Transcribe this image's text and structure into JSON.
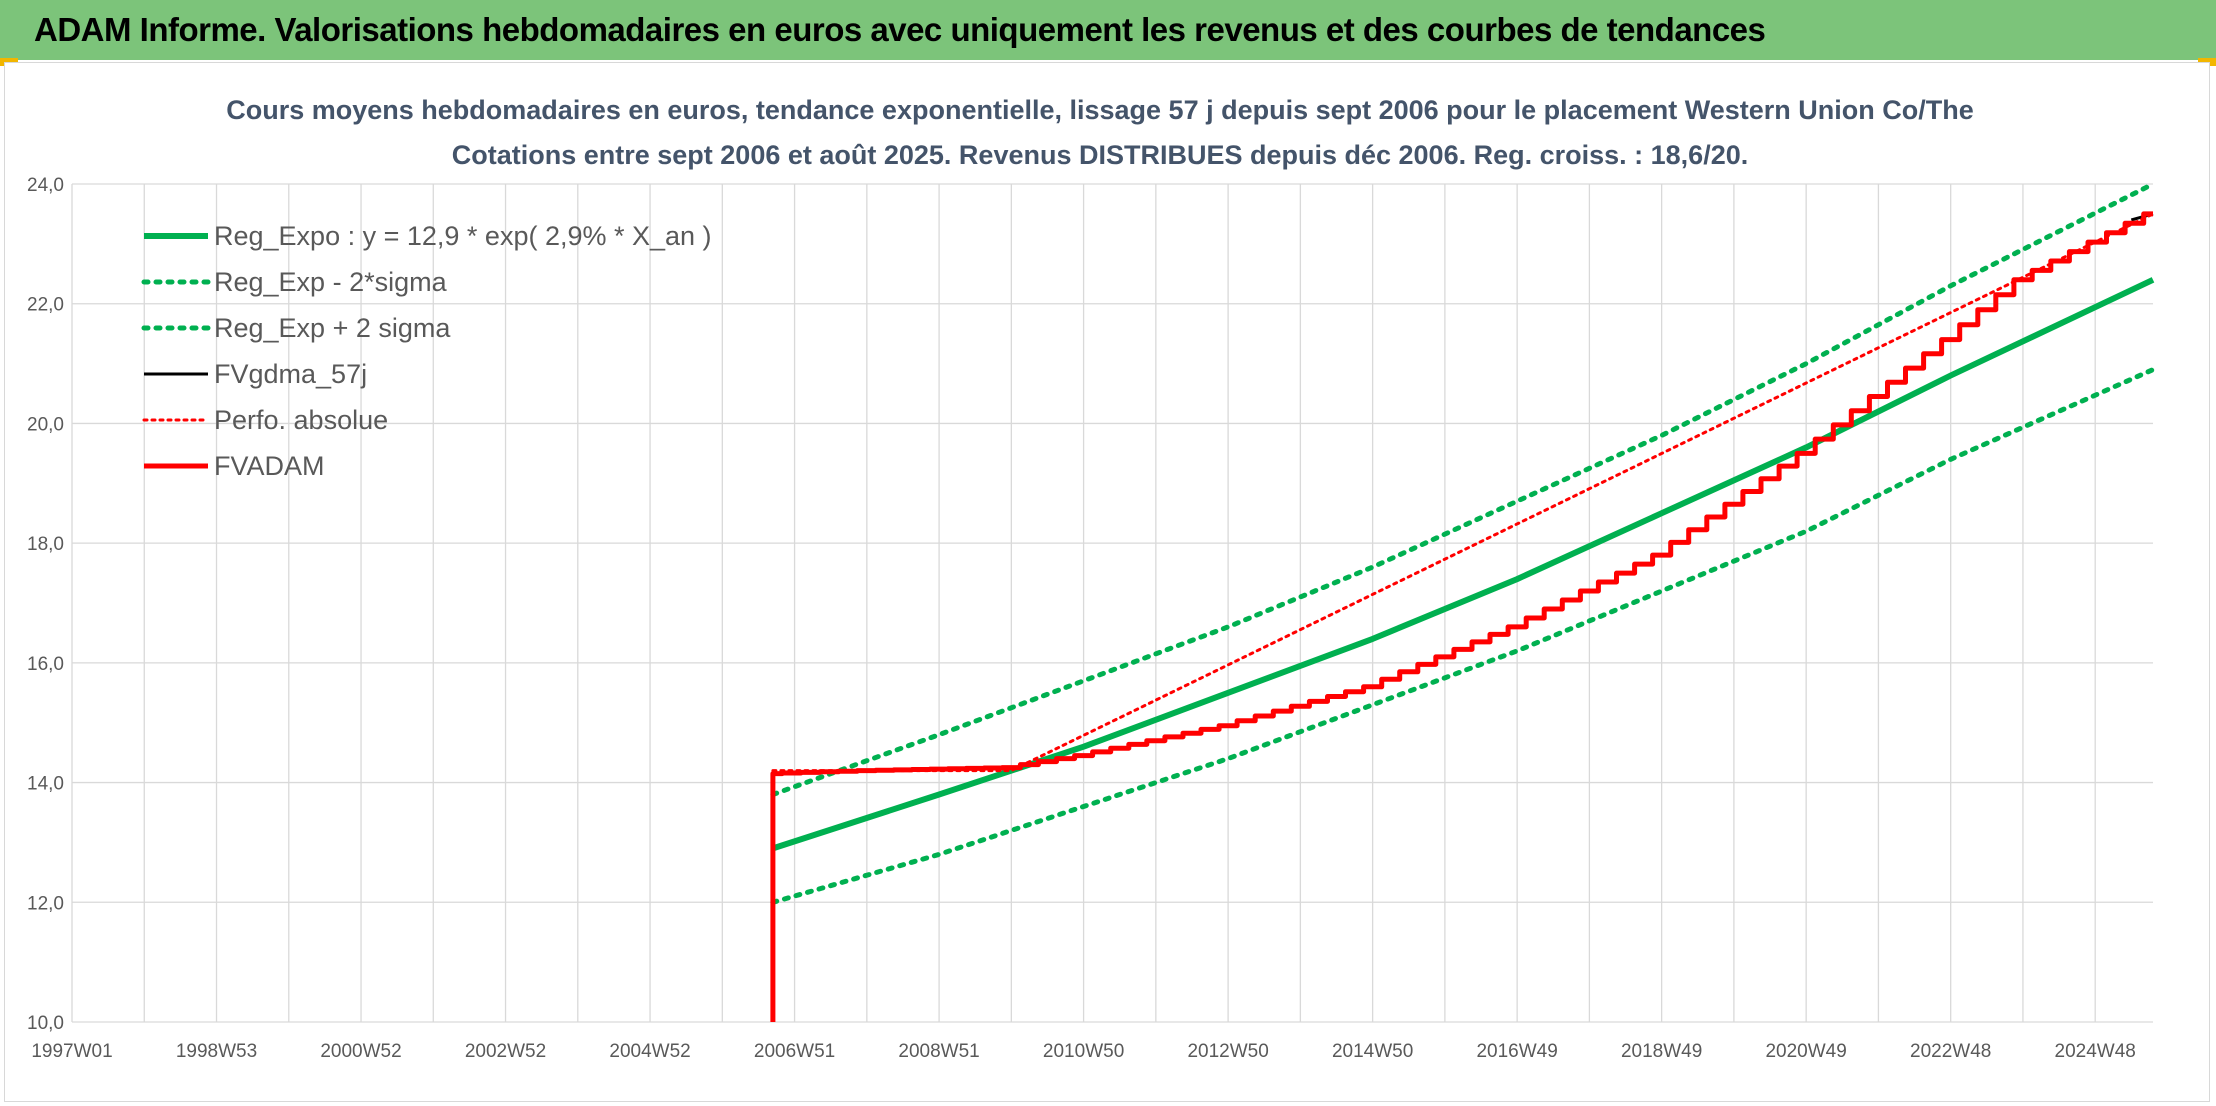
{
  "page": {
    "banner_title": "ADAM Informe. Valorisations hebdomadaires en euros avec uniquement les revenus et des courbes de tendances"
  },
  "colors": {
    "banner": "#7cc47a",
    "green": "#00b050",
    "red": "#ff0000",
    "black": "#000000",
    "grid": "#d9d9d9",
    "title": "#44546a"
  },
  "chart_data": {
    "type": "line",
    "title_lines": [
      "Cours moyens hebdomadaires en euros, tendance exponentielle, lissage 57 j depuis sept 2006 pour le placement Western Union Co/The",
      "Cotations entre sept 2006 et août 2025. Revenus DISTRIBUES depuis déc 2006. Reg. croiss. : 18,6/20."
    ],
    "ylim": [
      10,
      24
    ],
    "yticks": [
      "10,0",
      "12,0",
      "14,0",
      "16,0",
      "18,0",
      "20,0",
      "22,0",
      "24,0"
    ],
    "xlim": [
      1997.0,
      2025.8
    ],
    "xticks": [
      {
        "label": "1997W01",
        "x": 1997.0
      },
      {
        "label": "1998W53",
        "x": 1999.0
      },
      {
        "label": "2000W52",
        "x": 2001.0
      },
      {
        "label": "2002W52",
        "x": 2003.0
      },
      {
        "label": "2004W52",
        "x": 2005.0
      },
      {
        "label": "2006W51",
        "x": 2007.0
      },
      {
        "label": "2008W51",
        "x": 2009.0
      },
      {
        "label": "2010W50",
        "x": 2011.0
      },
      {
        "label": "2012W50",
        "x": 2013.0
      },
      {
        "label": "2014W50",
        "x": 2015.0
      },
      {
        "label": "2016W49",
        "x": 2017.0
      },
      {
        "label": "2018W49",
        "x": 2019.0
      },
      {
        "label": "2020W49",
        "x": 2021.0
      },
      {
        "label": "2022W48",
        "x": 2023.0
      },
      {
        "label": "2024W48",
        "x": 2025.0
      }
    ],
    "grid": true,
    "legend_position": "top-left",
    "series": [
      {
        "name": "Reg_Expo : y = 12,9 * exp( 2,9% *  X_an )",
        "color": "#00b050",
        "style": "solid",
        "x": [
          2006.7,
          2009.0,
          2011.0,
          2013.0,
          2015.0,
          2017.0,
          2019.0,
          2021.0,
          2023.0,
          2025.8
        ],
        "y": [
          12.9,
          13.8,
          14.6,
          15.5,
          16.4,
          17.4,
          18.5,
          19.6,
          20.8,
          22.4
        ]
      },
      {
        "name": "Reg_Exp - 2*sigma",
        "color": "#00b050",
        "style": "dotted",
        "x": [
          2006.7,
          2009.0,
          2011.0,
          2013.0,
          2015.0,
          2017.0,
          2019.0,
          2021.0,
          2023.0,
          2025.8
        ],
        "y": [
          12.0,
          12.8,
          13.6,
          14.4,
          15.3,
          16.2,
          17.2,
          18.2,
          19.4,
          20.9
        ]
      },
      {
        "name": "Reg_Exp + 2 sigma",
        "color": "#00b050",
        "style": "dotted",
        "x": [
          2006.7,
          2009.0,
          2011.0,
          2013.0,
          2015.0,
          2017.0,
          2019.0,
          2021.0,
          2023.0,
          2025.8
        ],
        "y": [
          13.8,
          14.8,
          15.7,
          16.6,
          17.6,
          18.7,
          19.8,
          21.0,
          22.3,
          24.0
        ]
      },
      {
        "name": "FVgdma_57j",
        "color": "#000000",
        "style": "solid",
        "x": [
          2025.5,
          2025.8
        ],
        "y": [
          23.4,
          23.5
        ]
      },
      {
        "name": "Perfo. absolue",
        "color": "#ff0000",
        "style": "dotted",
        "x": [
          2006.7,
          2010.0,
          2025.8
        ],
        "y": [
          14.2,
          14.2,
          23.5
        ]
      },
      {
        "name": "FVADAM",
        "color": "#ff0000",
        "style": "solid",
        "x": [
          2006.7,
          2006.7,
          2008.0,
          2010.0,
          2011.0,
          2013.0,
          2015.0,
          2017.0,
          2019.0,
          2021.0,
          2023.0,
          2024.0,
          2025.8
        ],
        "y": [
          10.0,
          14.15,
          14.2,
          14.25,
          14.45,
          14.95,
          15.6,
          16.6,
          17.8,
          19.5,
          21.4,
          22.4,
          23.5
        ]
      }
    ]
  }
}
